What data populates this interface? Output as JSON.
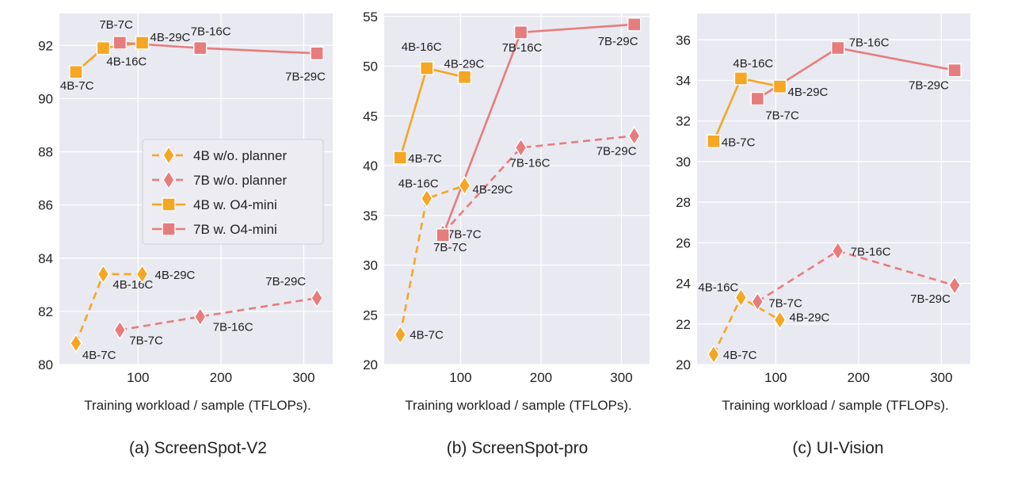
{
  "figure": {
    "series_styles": [
      {
        "name": "4B w/o. planner",
        "color": "#f5a623",
        "marker": "diamond",
        "dashed": true
      },
      {
        "name": "7B w/o. planner",
        "color": "#e77c7c",
        "marker": "diamond",
        "dashed": true
      },
      {
        "name": "4B w. O4-mini",
        "color": "#f5a623",
        "marker": "square",
        "dashed": false
      },
      {
        "name": "7B w. O4-mini",
        "color": "#e77c7c",
        "marker": "square",
        "dashed": false
      }
    ],
    "panel_bg": "#e9e9f1",
    "grid_color": "#ffffff"
  },
  "chart_data": [
    {
      "type": "line",
      "title": "(a) ScreenSpot-V2",
      "xlabel": "Training workload / sample (TFLOPs).",
      "ylabel": "",
      "xlim": [
        5,
        335
      ],
      "ylim": [
        80,
        93.2
      ],
      "xticks": [
        100,
        200,
        300
      ],
      "yticks": [
        80,
        82,
        84,
        86,
        88,
        90,
        92
      ],
      "grid": true,
      "legend": "center-right",
      "series": [
        {
          "name": "4B w/o. planner",
          "points": [
            {
              "x": 25,
              "y": 80.8,
              "label": "4B-7C"
            },
            {
              "x": 58,
              "y": 83.4,
              "label": "4B-16C"
            },
            {
              "x": 105,
              "y": 83.4,
              "label": "4B-29C"
            }
          ]
        },
        {
          "name": "7B w/o. planner",
          "points": [
            {
              "x": 78,
              "y": 81.3,
              "label": "7B-7C"
            },
            {
              "x": 175,
              "y": 81.8,
              "label": "7B-16C"
            },
            {
              "x": 316,
              "y": 82.5,
              "label": "7B-29C"
            }
          ]
        },
        {
          "name": "4B w. O4-mini",
          "points": [
            {
              "x": 25,
              "y": 91.0,
              "label": "4B-7C"
            },
            {
              "x": 58,
              "y": 91.9,
              "label": "4B-16C"
            },
            {
              "x": 105,
              "y": 92.1,
              "label": "4B-29C"
            }
          ]
        },
        {
          "name": "7B w. O4-mini",
          "points": [
            {
              "x": 78,
              "y": 92.1,
              "label": "7B-7C"
            },
            {
              "x": 175,
              "y": 91.9,
              "label": "7B-16C"
            },
            {
              "x": 316,
              "y": 91.7,
              "label": "7B-29C"
            }
          ]
        }
      ]
    },
    {
      "type": "line",
      "title": "(b) ScreenSpot-pro",
      "xlabel": "Training workload / sample (TFLOPs).",
      "ylabel": "",
      "xlim": [
        5,
        335
      ],
      "ylim": [
        20,
        55.3
      ],
      "xticks": [
        100,
        200,
        300
      ],
      "yticks": [
        20,
        25,
        30,
        35,
        40,
        45,
        50,
        55
      ],
      "grid": true,
      "legend": "none",
      "series": [
        {
          "name": "4B w/o. planner",
          "points": [
            {
              "x": 25,
              "y": 23.0,
              "label": "4B-7C"
            },
            {
              "x": 58,
              "y": 36.7,
              "label": "4B-16C"
            },
            {
              "x": 105,
              "y": 38.0,
              "label": "4B-29C"
            }
          ]
        },
        {
          "name": "7B w/o. planner",
          "points": [
            {
              "x": 78,
              "y": 33.2,
              "label": "7B-7C"
            },
            {
              "x": 175,
              "y": 41.8,
              "label": "7B-16C"
            },
            {
              "x": 316,
              "y": 43.0,
              "label": "7B-29C"
            }
          ]
        },
        {
          "name": "4B w. O4-mini",
          "points": [
            {
              "x": 25,
              "y": 40.8,
              "label": "4B-7C"
            },
            {
              "x": 58,
              "y": 49.8,
              "label": "4B-16C"
            },
            {
              "x": 105,
              "y": 48.9,
              "label": "4B-29C"
            }
          ]
        },
        {
          "name": "7B w. O4-mini",
          "points": [
            {
              "x": 78,
              "y": 33.0,
              "label": "7B-7C"
            },
            {
              "x": 175,
              "y": 53.4,
              "label": "7B-16C"
            },
            {
              "x": 316,
              "y": 54.2,
              "label": "7B-29C"
            }
          ]
        }
      ]
    },
    {
      "type": "line",
      "title": "(c) UI-Vision",
      "xlabel": "Training workload / sample (TFLOPs).",
      "ylabel": "",
      "xlim": [
        5,
        335
      ],
      "ylim": [
        20,
        37.3
      ],
      "xticks": [
        100,
        200,
        300
      ],
      "yticks": [
        20,
        22,
        24,
        26,
        28,
        30,
        32,
        34,
        36
      ],
      "grid": true,
      "legend": "none",
      "series": [
        {
          "name": "4B w/o. planner",
          "points": [
            {
              "x": 25,
              "y": 20.5,
              "label": "4B-7C"
            },
            {
              "x": 58,
              "y": 23.3,
              "label": "4B-16C"
            },
            {
              "x": 105,
              "y": 22.2,
              "label": "4B-29C"
            }
          ]
        },
        {
          "name": "7B w/o. planner",
          "points": [
            {
              "x": 78,
              "y": 23.1,
              "label": "7B-7C"
            },
            {
              "x": 175,
              "y": 25.6,
              "label": "7B-16C"
            },
            {
              "x": 316,
              "y": 23.9,
              "label": "7B-29C"
            }
          ]
        },
        {
          "name": "4B w. O4-mini",
          "points": [
            {
              "x": 25,
              "y": 31.0,
              "label": "4B-7C"
            },
            {
              "x": 58,
              "y": 34.1,
              "label": "4B-16C"
            },
            {
              "x": 105,
              "y": 33.7,
              "label": "4B-29C"
            }
          ]
        },
        {
          "name": "7B w. O4-mini",
          "points": [
            {
              "x": 78,
              "y": 33.1,
              "label": "7B-7C"
            },
            {
              "x": 175,
              "y": 35.6,
              "label": "7B-16C"
            },
            {
              "x": 316,
              "y": 34.5,
              "label": "7B-29C"
            }
          ]
        }
      ]
    }
  ]
}
